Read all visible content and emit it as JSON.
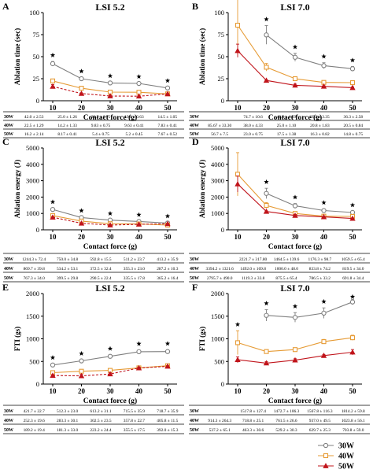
{
  "colors": {
    "w30": "#7f7f7f",
    "w40": "#e69b35",
    "w50": "#c0141b",
    "cell_border": "#000000"
  },
  "legend": [
    "30W",
    "40W",
    "50W"
  ],
  "chart_data": [
    {
      "type": "line",
      "panel": "A",
      "title": "LSI 5.2",
      "xlabel": "Contact force (g)",
      "ylabel": "Ablation time (sec)",
      "categories": [
        "10",
        "20",
        "30",
        "40",
        "50"
      ],
      "ylim": [
        0,
        100
      ],
      "yticks": [
        "0",
        "25",
        "50",
        "75",
        "100"
      ],
      "series": [
        {
          "name": "30W",
          "values": [
            42.0,
            25.0,
            20.2,
            19.6,
            14.5
          ],
          "err": [
            2.5,
            1.3,
            0.8,
            0.6,
            1.1
          ]
        },
        {
          "name": "40W",
          "values": [
            22.5,
            14.2,
            9.8,
            9.6,
            7.8
          ],
          "err": [
            1.3,
            1.3,
            0.8,
            0.4,
            0.4
          ]
        },
        {
          "name": "50W",
          "values": [
            16.2,
            8.2,
            5.4,
            5.2,
            7.7
          ],
          "err": [
            2.1,
            0.4,
            0.8,
            0.5,
            0.5
          ]
        }
      ],
      "stars": [
        10,
        20,
        30,
        40,
        50
      ],
      "table": [
        [
          "30W",
          "42.0 ± 2.53",
          "25.0 ± 1.26",
          "20.2 ± 0.75",
          "19.6 ± 0.63",
          "14.5 ± 1.05"
        ],
        [
          "40W",
          "22.5 ± 1.29",
          "14.2 ± 1.33",
          "9.83 ± 0.75",
          "9.63 ± 0.41",
          "7.83 ± 0.41"
        ],
        [
          "50W",
          "16.2 ± 2.14",
          "8.17 ± 0.41",
          "5.4 ± 0.75",
          "5.2 ± 0.45",
          "7.67 ± 0.52"
        ]
      ]
    },
    {
      "type": "line",
      "panel": "B",
      "title": "LSI 7.0",
      "xlabel": "Contact force (g)",
      "ylabel": "Ablation time (sec)",
      "categories": [
        "10",
        "20",
        "30",
        "40",
        "50"
      ],
      "ylim": [
        0,
        100
      ],
      "yticks": [
        "0",
        "25",
        "50",
        "75",
        "100"
      ],
      "series": [
        {
          "name": "30W",
          "values": [
            null,
            74.7,
            49.3,
            39.8,
            36.3
          ],
          "err": [
            0,
            10.6,
            4.5,
            3.3,
            2.5
          ]
        },
        {
          "name": "40W",
          "values": [
            85.7,
            38.0,
            25.0,
            20.8,
            20.5
          ],
          "err": [
            33.3,
            4.3,
            1.1,
            1.8,
            0.8
          ]
        },
        {
          "name": "50W",
          "values": [
            56.7,
            23.0,
            17.5,
            16.3,
            14.8
          ],
          "err": [
            7.5,
            0.8,
            1.4,
            0.8,
            0.8
          ]
        }
      ],
      "stars": [
        20,
        30,
        40,
        50
      ],
      "table": [
        [
          "30W",
          "",
          "74.7 ± 10.6",
          "49.3 ± 4.59",
          "39.8 ± 3.35",
          "36.3 ± 2.58"
        ],
        [
          "40W",
          "85.67 ± 33.30",
          "38.0 ± 4.33",
          "25.0 ± 1.10",
          "20.8 ± 1.83",
          "20.5 ± 0.84"
        ],
        [
          "50W",
          "56.7 ± 7.5",
          "23.0 ± 0.75",
          "17.5 ± 1.38",
          "16.3 ± 0.82",
          "14.8 ± 0.75"
        ]
      ]
    },
    {
      "type": "line",
      "panel": "C",
      "title": "LSI 5.2",
      "xlabel": "Contact force (g)",
      "ylabel": "Ablation energy (J)",
      "categories": [
        "10",
        "20",
        "30",
        "40",
        "50"
      ],
      "ylim": [
        0,
        5000
      ],
      "yticks": [
        "0",
        "1000",
        "2000",
        "3000",
        "4000",
        "5000"
      ],
      "series": [
        {
          "name": "30W",
          "values": [
            1244.3,
            750.0,
            592.8,
            511.2,
            413.2
          ],
          "err": [
            72,
            34,
            15,
            24,
            36
          ]
        },
        {
          "name": "40W",
          "values": [
            869.7,
            534.2,
            372.5,
            355.3,
            287.2
          ],
          "err": [
            40,
            53,
            32,
            23,
            10
          ]
        },
        {
          "name": "50W",
          "values": [
            767.3,
            399.5,
            290.5,
            335.5,
            365.2
          ],
          "err": [
            34,
            30,
            22,
            18,
            16
          ]
        }
      ],
      "stars": [
        10,
        20,
        30,
        40,
        50
      ],
      "table": [
        [
          "30W",
          "1244.3 ± 72.4",
          "750.0 ± 34.8",
          "592.8 ± 15.5",
          "511.2 ± 23.7",
          "413.2 ± 35.9"
        ],
        [
          "40W",
          "869.7 ± 39.8",
          "534.2 ± 53.1",
          "372.5 ± 32.4",
          "355.3 ± 23.0",
          "287.2 ± 10.3"
        ],
        [
          "50W",
          "767.3 ± 34.0",
          "399.5 ± 29.8",
          "290.5 ± 22.4",
          "335.5 ± 17.8",
          "365.2 ± 16.4"
        ]
      ]
    },
    {
      "type": "line",
      "panel": "D",
      "title": "LSI 7.0",
      "xlabel": "Contact force (g)",
      "ylabel": "Ablation energy (J)",
      "categories": [
        "10",
        "20",
        "30",
        "40",
        "50"
      ],
      "ylim": [
        0,
        5000
      ],
      "yticks": [
        "0",
        "1000",
        "2000",
        "3000",
        "4000",
        "5000"
      ],
      "series": [
        {
          "name": "30W",
          "values": [
            null,
            2221.7,
            1464.5,
            1176.3,
            1059.5
          ],
          "err": [
            0,
            317,
            140,
            98,
            65
          ]
        },
        {
          "name": "40W",
          "values": [
            3394.2,
            1492.0,
            1000.0,
            833.8,
            819.5
          ],
          "err": [
            1321,
            170,
            48,
            74,
            34
          ]
        },
        {
          "name": "50W",
          "values": [
            2795.7,
            1119.3,
            875.5,
            786.5,
            691.8
          ],
          "err": [
            490,
            34,
            65,
            33,
            34
          ]
        }
      ],
      "stars": [
        20,
        30,
        40,
        50
      ],
      "table": [
        [
          "30W",
          "",
          "2221.7 ± 317.80",
          "1464.5 ± 139.6",
          "1176.3 ± 98.7",
          "1059.5 ± 65.4"
        ],
        [
          "40W",
          "3394.2 ± 1321.6",
          "1492.0 ± 169.8",
          "1000.0 ± 48.0",
          "833.8 ± 74.2",
          "819.5 ± 34.0"
        ],
        [
          "50W",
          "2795.7 ± 490.0",
          "1119.3 ± 33.8",
          "875.5 ± 65.4",
          "786.5 ± 33.2",
          "691.8 ± 34.4"
        ]
      ]
    },
    {
      "type": "line",
      "panel": "E",
      "title": "LSI 5.2",
      "xlabel": "Contact force (g)",
      "ylabel": "FTI (gs)",
      "categories": [
        "10",
        "20",
        "30",
        "40",
        "50"
      ],
      "ylim": [
        0,
        2000
      ],
      "yticks": [
        "0",
        "500",
        "1000",
        "1500",
        "2000"
      ],
      "series": [
        {
          "name": "30W",
          "values": [
            421.7,
            512.3,
            613.2,
            715.5,
            718.7
          ],
          "err": [
            23,
            23,
            31,
            36,
            36
          ]
        },
        {
          "name": "40W",
          "values": [
            252.3,
            283.3,
            302.5,
            357.8,
            405.8
          ],
          "err": [
            20,
            30,
            23,
            23,
            11
          ]
        },
        {
          "name": "50W",
          "values": [
            189.2,
            181.3,
            223.2,
            355.5,
            392.0
          ],
          "err": [
            19,
            33,
            24,
            18,
            15
          ]
        }
      ],
      "stars": [
        10,
        20,
        30,
        40,
        50
      ],
      "table": [
        [
          "30W",
          "421.7 ± 22.7",
          "512.3 ± 23.0",
          "613.2 ± 31.1",
          "715.5 ± 35.9",
          "718.7 ± 35.9"
        ],
        [
          "40W",
          "252.3 ± 19.6",
          "283.3 ± 30.1",
          "302.5 ± 23.5",
          "357.8 ± 22.7",
          "405.8 ± 11.5"
        ],
        [
          "50W",
          "189.2 ± 19.4",
          "181.3 ± 33.0",
          "223.2 ± 24.4",
          "355.5 ± 17.5",
          "392.0 ± 15.3"
        ]
      ]
    },
    {
      "type": "line",
      "panel": "F",
      "title": "LSI 7.0",
      "xlabel": "Contact force (g)",
      "ylabel": "FTI (gs)",
      "categories": [
        "10",
        "20",
        "30",
        "40",
        "50"
      ],
      "ylim": [
        0,
        2000
      ],
      "yticks": [
        "0",
        "500",
        "1000",
        "1500",
        "2000"
      ],
      "series": [
        {
          "name": "30W",
          "values": [
            null,
            1517.8,
            1472.7,
            1567.8,
            1814.2
          ],
          "err": [
            0,
            127,
            106,
            116,
            60
          ]
        },
        {
          "name": "40W",
          "values": [
            914.3,
            718.8,
            761.5,
            937.0,
            1023.8
          ],
          "err": [
            264,
            25,
            26,
            50,
            56
          ]
        },
        {
          "name": "50W",
          "values": [
            537.2,
            463.3,
            529.2,
            629.7,
            703.8
          ],
          "err": [
            65,
            31,
            30,
            25,
            59
          ]
        }
      ],
      "stars": [
        10,
        20,
        30,
        40,
        50
      ],
      "table": [
        [
          "30W",
          "",
          "1517.8 ± 127.4",
          "1472.7 ± 106.3",
          "1567.8 ± 116.3",
          "1814.2 ± 59.8"
        ],
        [
          "40W",
          "914.3 ± 264.3",
          "718.8 ± 25.1",
          "761.5 ± 26.6",
          "937.0 ± 49.5",
          "1023.8 ± 56.1"
        ],
        [
          "50W",
          "537.2 ± 65.1",
          "463.3 ± 30.6",
          "529.2 ± 30.3",
          "629.7 ± 25.3",
          "703.8 ± 59.0"
        ]
      ]
    }
  ]
}
